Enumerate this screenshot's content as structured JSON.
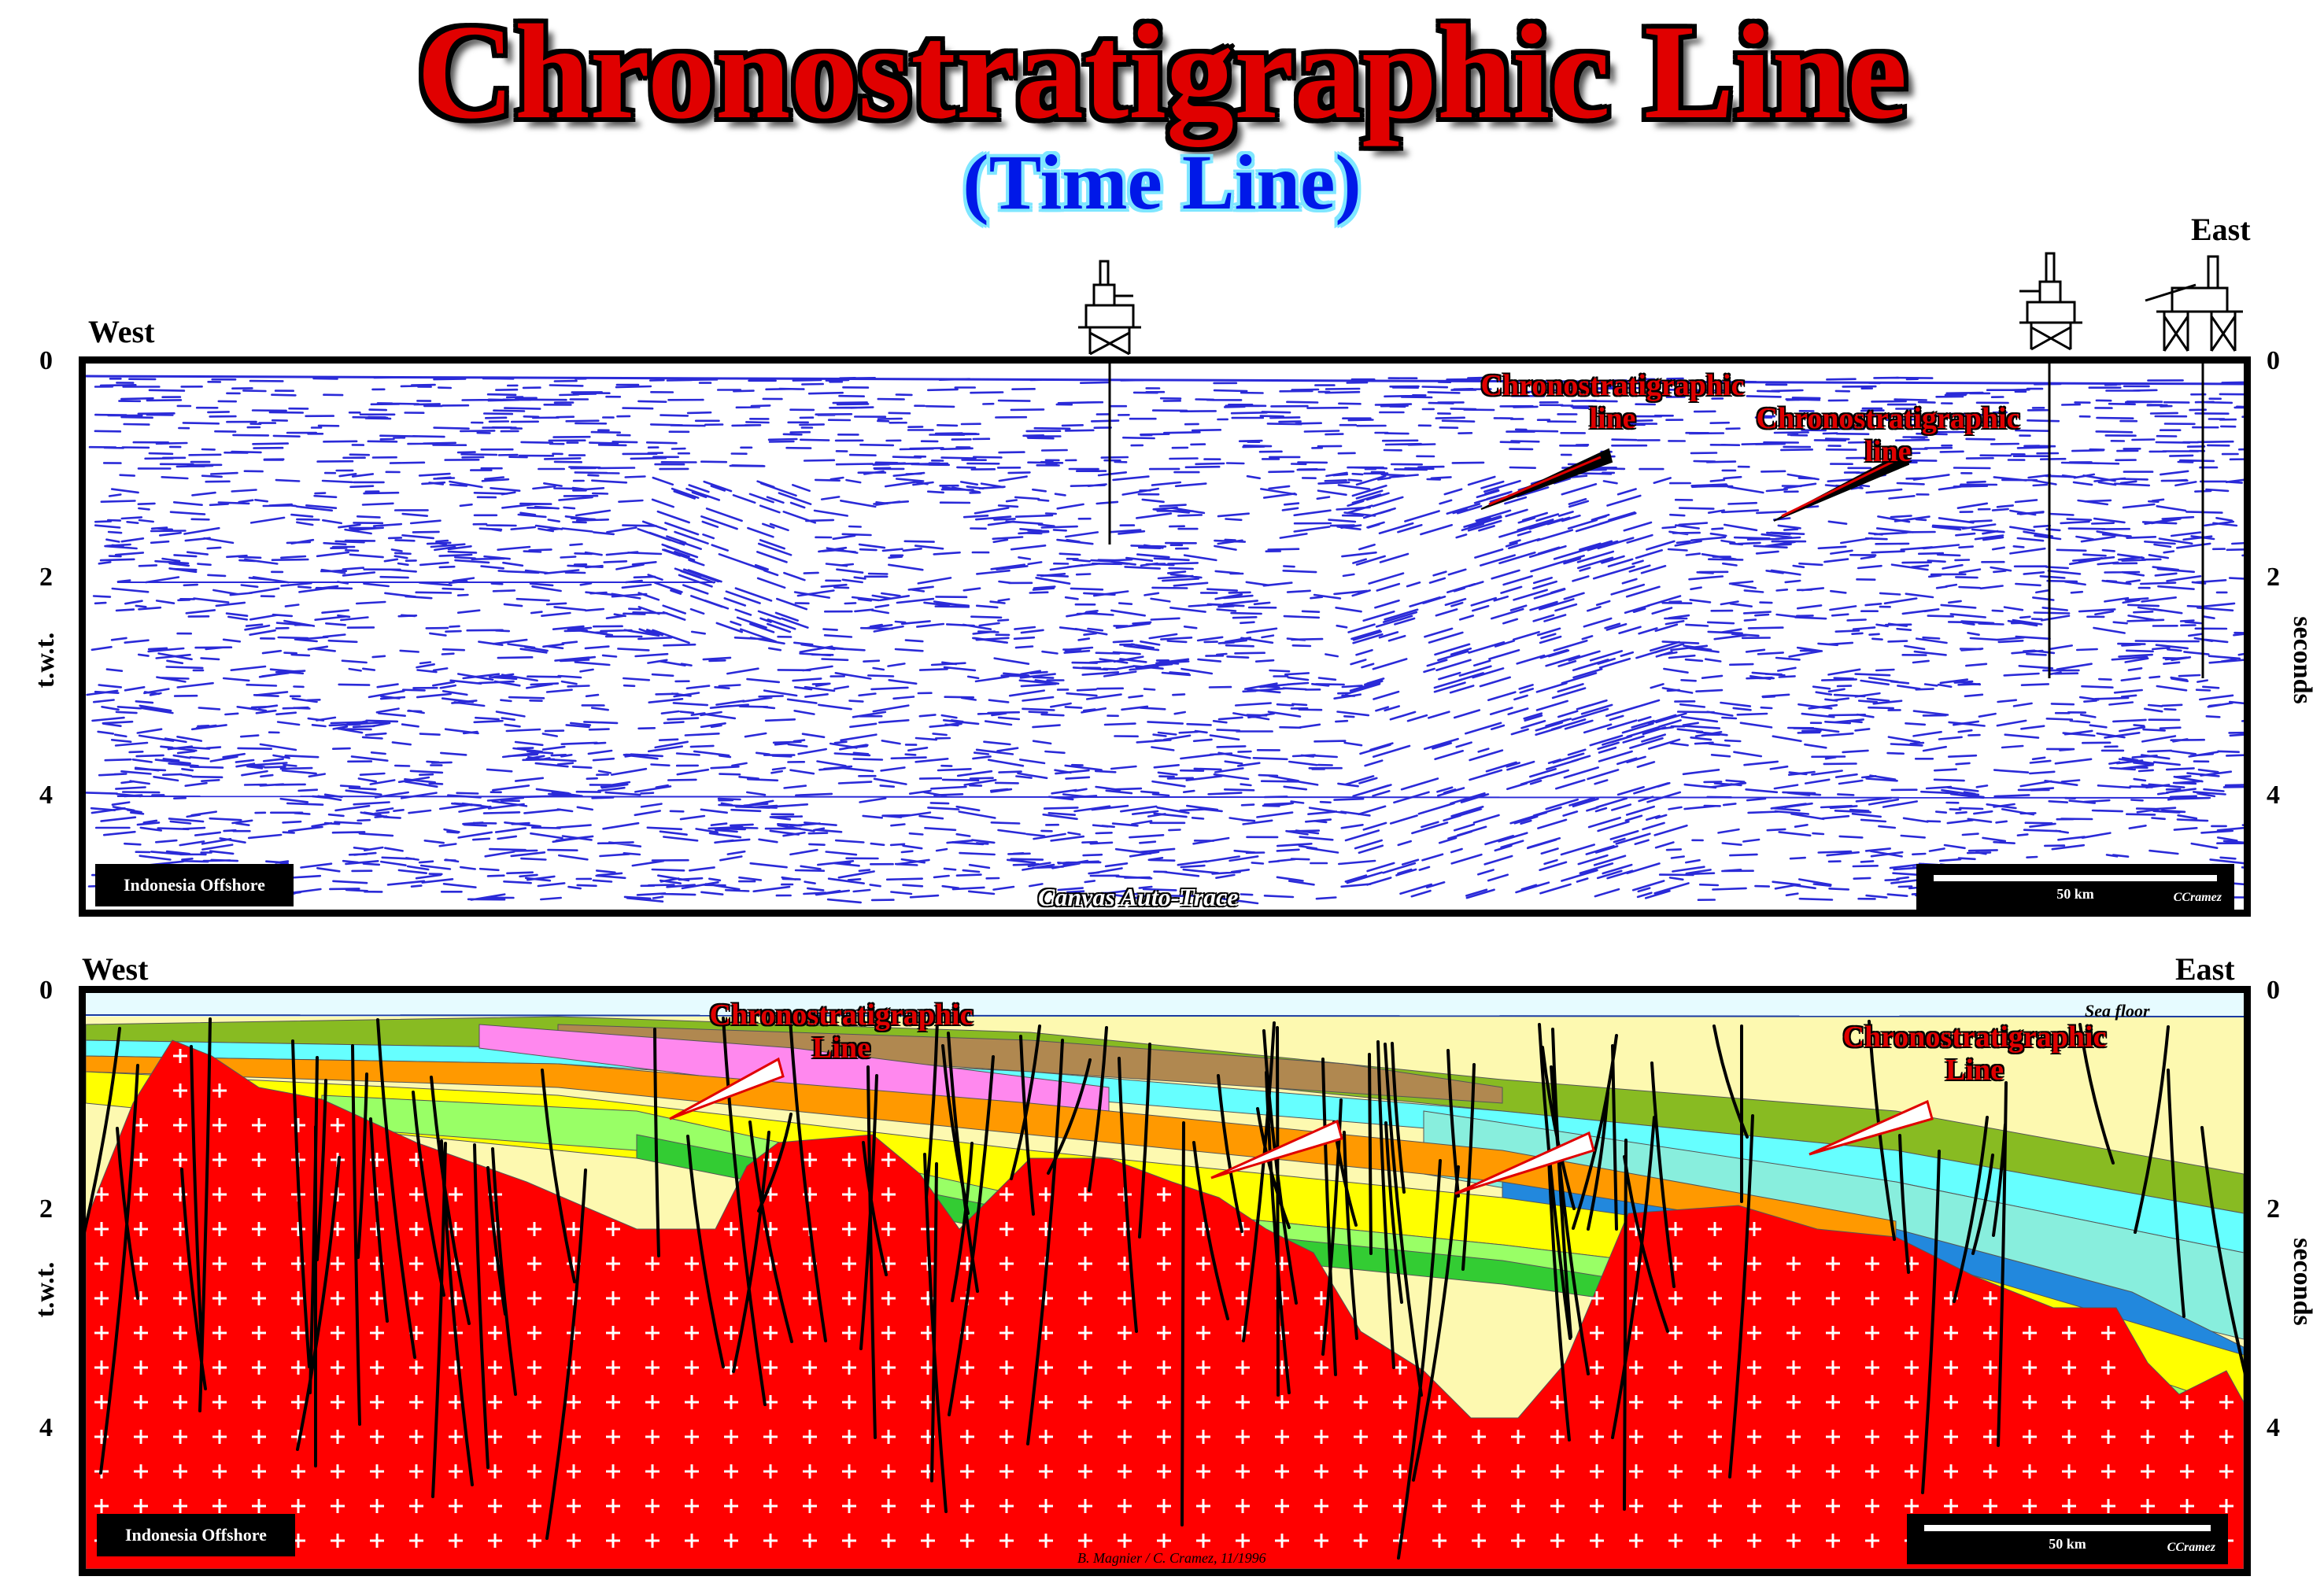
{
  "title": "Chronostratigraphic Line",
  "subtitle": "(Time Line)",
  "seismic_panel": {
    "west_label": "West",
    "east_label": "East",
    "left_axis_label": "t.w.t.",
    "right_axis_label": "seconds",
    "ticks": [
      "0",
      "2",
      "4"
    ],
    "location_badge": "Indonesia Offshore",
    "watermark": "Canvas Auto-Trace",
    "scale_label": "50 km",
    "author": "CCramez",
    "annotation_1": [
      "Chronostratigraphic",
      "line"
    ],
    "annotation_2": [
      "Chronostratigraphic",
      "line"
    ],
    "reflector_color": "#2a2ad8"
  },
  "interpretation_panel": {
    "west_label": "West",
    "east_label": "East",
    "left_axis_label": "t.w.t.",
    "right_axis_label": "seconds",
    "ticks": [
      "0",
      "2",
      "4"
    ],
    "sea_floor_label": "Sea floor",
    "location_badge": "Indonesia Offshore",
    "credit": "B. Magnier / C. Cramez, 11/1996",
    "scale_label": "50 km",
    "author": "CCramez",
    "annotation_1": [
      "Chronostratigraphic",
      "Line"
    ],
    "annotation_2": [
      "Chronostratigraphic",
      "Line"
    ],
    "basement_color": "#ff0000",
    "colors": {
      "pale_yellow": "#fdf9b0",
      "yellow": "#ffff00",
      "light_green": "#99ff66",
      "green": "#33cc33",
      "pink": "#ff88ee",
      "brown": "#b08850",
      "olive": "#88bb22",
      "cyan": "#66ffff",
      "aqua": "#88eedd",
      "blue": "#2288dd",
      "orange": "#ff9900",
      "tan": "#ffcc66",
      "sky": "#e6fbff"
    }
  }
}
